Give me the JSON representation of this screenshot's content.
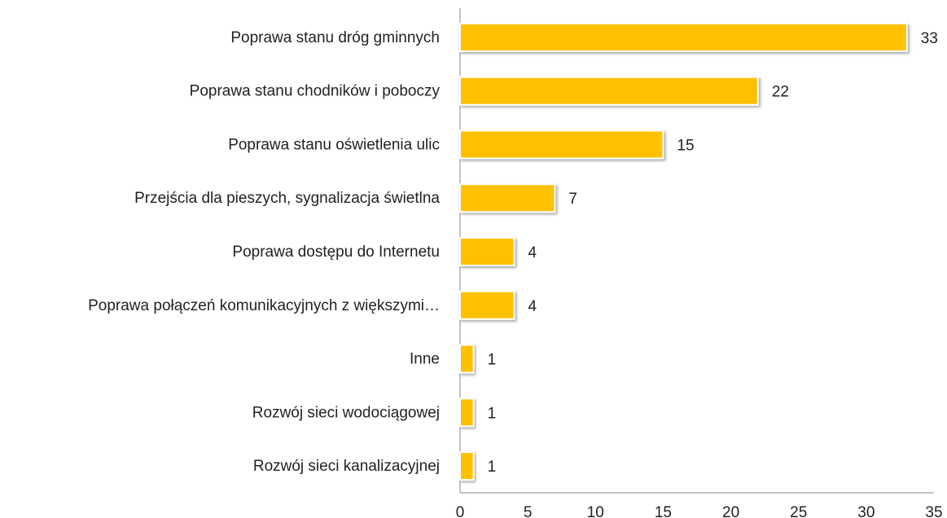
{
  "chart_data": {
    "type": "bar",
    "categories": [
      "Poprawa stanu dróg gminnych",
      "Poprawa stanu chodników i poboczy",
      "Poprawa stanu oświetlenia ulic",
      "Przejścia dla pieszych, sygnalizacja świetlna",
      "Poprawa dostępu do Internetu",
      "Poprawa połączeń komunikacyjnych z większymi…",
      "Inne",
      "Rozwój sieci wodociągowej",
      "Rozwój sieci kanalizacyjnej"
    ],
    "values": [
      33,
      22,
      15,
      7,
      4,
      4,
      1,
      1,
      1
    ],
    "color": "#ffc000",
    "xlim": [
      0,
      35
    ],
    "xticks": [
      0,
      5,
      10,
      15,
      20,
      25,
      30,
      35
    ],
    "grid": false
  }
}
